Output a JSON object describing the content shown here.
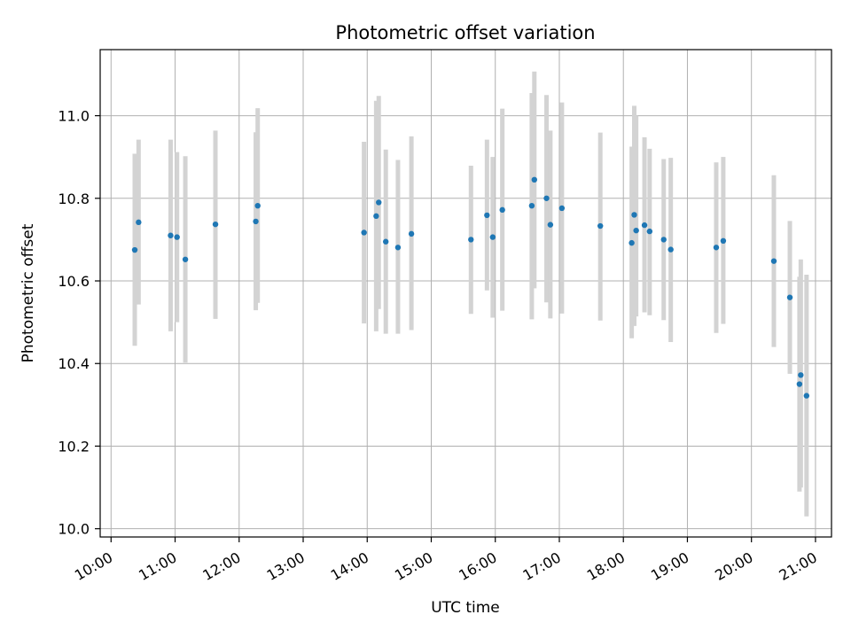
{
  "chart_data": {
    "type": "scatter",
    "title": "Photometric offset variation",
    "xlabel": "UTC time",
    "ylabel": "Photometric offset",
    "x_unit": "hours (UTC)",
    "xlim": [
      9.83,
      21.25
    ],
    "ylim": [
      9.98,
      11.16
    ],
    "x_ticks": [
      {
        "value": 10,
        "label": "10:00"
      },
      {
        "value": 11,
        "label": "11:00"
      },
      {
        "value": 12,
        "label": "12:00"
      },
      {
        "value": 13,
        "label": "13:00"
      },
      {
        "value": 14,
        "label": "14:00"
      },
      {
        "value": 15,
        "label": "15:00"
      },
      {
        "value": 16,
        "label": "16:00"
      },
      {
        "value": 17,
        "label": "17:00"
      },
      {
        "value": 18,
        "label": "18:00"
      },
      {
        "value": 19,
        "label": "19:00"
      },
      {
        "value": 20,
        "label": "20:00"
      },
      {
        "value": 21,
        "label": "21:00"
      }
    ],
    "y_ticks": [
      {
        "value": 10.0,
        "label": "10.0"
      },
      {
        "value": 10.2,
        "label": "10.2"
      },
      {
        "value": 10.4,
        "label": "10.4"
      },
      {
        "value": 10.6,
        "label": "10.6"
      },
      {
        "value": 10.8,
        "label": "10.8"
      },
      {
        "value": 11.0,
        "label": "11.0"
      }
    ],
    "grid": true,
    "colors": {
      "point": "#1f77b4",
      "errorbar": "#d3d3d3",
      "grid": "#b0b0b0"
    },
    "points": [
      {
        "x": 10.37,
        "y": 10.675,
        "err_low": 10.443,
        "err_high": 10.908
      },
      {
        "x": 10.43,
        "y": 10.742,
        "err_low": 10.543,
        "err_high": 10.942
      },
      {
        "x": 10.93,
        "y": 10.71,
        "err_low": 10.478,
        "err_high": 10.942
      },
      {
        "x": 11.03,
        "y": 10.706,
        "err_low": 10.5,
        "err_high": 10.912
      },
      {
        "x": 11.16,
        "y": 10.652,
        "err_low": 10.402,
        "err_high": 10.902
      },
      {
        "x": 11.63,
        "y": 10.737,
        "err_low": 10.508,
        "err_high": 10.964
      },
      {
        "x": 12.26,
        "y": 10.744,
        "err_low": 10.529,
        "err_high": 10.96
      },
      {
        "x": 12.29,
        "y": 10.782,
        "err_low": 10.547,
        "err_high": 11.018
      },
      {
        "x": 13.95,
        "y": 10.717,
        "err_low": 10.497,
        "err_high": 10.937
      },
      {
        "x": 14.14,
        "y": 10.757,
        "err_low": 10.478,
        "err_high": 11.036
      },
      {
        "x": 14.18,
        "y": 10.79,
        "err_low": 10.532,
        "err_high": 11.048
      },
      {
        "x": 14.29,
        "y": 10.695,
        "err_low": 10.472,
        "err_high": 10.918
      },
      {
        "x": 14.48,
        "y": 10.681,
        "err_low": 10.472,
        "err_high": 10.893
      },
      {
        "x": 14.69,
        "y": 10.714,
        "err_low": 10.481,
        "err_high": 10.95
      },
      {
        "x": 15.62,
        "y": 10.7,
        "err_low": 10.52,
        "err_high": 10.879
      },
      {
        "x": 15.87,
        "y": 10.759,
        "err_low": 10.577,
        "err_high": 10.942
      },
      {
        "x": 15.96,
        "y": 10.706,
        "err_low": 10.511,
        "err_high": 10.9
      },
      {
        "x": 16.11,
        "y": 10.772,
        "err_low": 10.528,
        "err_high": 11.017
      },
      {
        "x": 16.57,
        "y": 10.782,
        "err_low": 10.507,
        "err_high": 11.055
      },
      {
        "x": 16.61,
        "y": 10.845,
        "err_low": 10.582,
        "err_high": 11.107
      },
      {
        "x": 16.8,
        "y": 10.8,
        "err_low": 10.548,
        "err_high": 11.05
      },
      {
        "x": 16.86,
        "y": 10.736,
        "err_low": 10.509,
        "err_high": 10.964
      },
      {
        "x": 17.04,
        "y": 10.776,
        "err_low": 10.521,
        "err_high": 11.032
      },
      {
        "x": 17.64,
        "y": 10.733,
        "err_low": 10.504,
        "err_high": 10.959
      },
      {
        "x": 18.13,
        "y": 10.692,
        "err_low": 10.461,
        "err_high": 10.925
      },
      {
        "x": 18.17,
        "y": 10.76,
        "err_low": 10.491,
        "err_high": 11.024
      },
      {
        "x": 18.2,
        "y": 10.722,
        "err_low": 10.514,
        "err_high": 11.0
      },
      {
        "x": 18.33,
        "y": 10.735,
        "err_low": 10.524,
        "err_high": 10.948
      },
      {
        "x": 18.41,
        "y": 10.72,
        "err_low": 10.517,
        "err_high": 10.92
      },
      {
        "x": 18.63,
        "y": 10.7,
        "err_low": 10.505,
        "err_high": 10.895
      },
      {
        "x": 18.74,
        "y": 10.676,
        "err_low": 10.452,
        "err_high": 10.898
      },
      {
        "x": 19.45,
        "y": 10.681,
        "err_low": 10.474,
        "err_high": 10.887
      },
      {
        "x": 19.56,
        "y": 10.697,
        "err_low": 10.496,
        "err_high": 10.9
      },
      {
        "x": 20.35,
        "y": 10.648,
        "err_low": 10.44,
        "err_high": 10.856
      },
      {
        "x": 20.6,
        "y": 10.56,
        "err_low": 10.375,
        "err_high": 10.745
      },
      {
        "x": 20.75,
        "y": 10.35,
        "err_low": 10.09,
        "err_high": 10.61
      },
      {
        "x": 20.77,
        "y": 10.372,
        "err_low": 10.1,
        "err_high": 10.652
      },
      {
        "x": 20.86,
        "y": 10.322,
        "err_low": 10.03,
        "err_high": 10.615
      }
    ]
  }
}
